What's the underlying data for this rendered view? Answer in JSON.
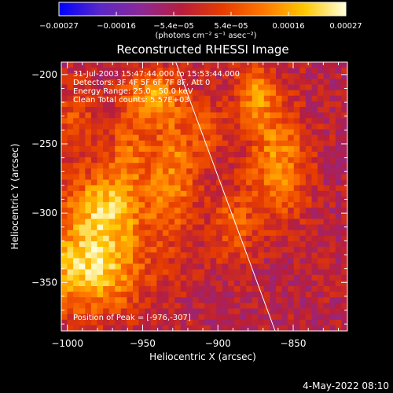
{
  "chart_data": {
    "type": "heatmap",
    "title": "Reconstructed RHESSI Image",
    "xlabel": "Heliocentric X (arcsec)",
    "ylabel": "Heliocentric Y (arcsec)",
    "xlim": [
      -1004,
      -814
    ],
    "ylim": [
      -385,
      -191
    ],
    "x_ticks": [
      {
        "value": -1000,
        "label": "−1000"
      },
      {
        "value": -950,
        "label": "−950"
      },
      {
        "value": -900,
        "label": "−900"
      },
      {
        "value": -850,
        "label": "−850"
      }
    ],
    "y_ticks": [
      {
        "value": -200,
        "label": "−200"
      },
      {
        "value": -250,
        "label": "−250"
      },
      {
        "value": -300,
        "label": "−300"
      },
      {
        "value": -350,
        "label": "−350"
      }
    ],
    "colorbar": {
      "range": [
        -0.00027,
        0.00027
      ],
      "ticks": [
        "−0.00027",
        "−0.00016",
        "−5.4e−05",
        "5.4e−05",
        "0.00016",
        "0.00027"
      ],
      "units_text": "(photons cm⁻² s⁻¹ asec⁻²)",
      "colors": [
        "#0000ff",
        "#5a28c8",
        "#8c2896",
        "#b81e3c",
        "#e63c00",
        "#ff7800",
        "#ffc800",
        "#ffffdc"
      ]
    },
    "annotations": [
      "31-Jul-2003 15:47:44.000 to 15:53:44.000",
      "Detectors: 3F 4F 5F 6F 7F 8F, Att 0",
      "Energy Range: 25.0 - 50.0 keV",
      "Clean     Total counts: 5.57E+03"
    ],
    "peak_label": "Position of Peak = [-976,-307]",
    "peak": {
      "x": -976,
      "y": -307
    },
    "limb_line": [
      {
        "x": -928,
        "y": -191
      },
      {
        "x": -862,
        "y": -385
      }
    ],
    "grid": false,
    "grid_shape": [
      48,
      48
    ],
    "emission_sources": [
      {
        "x": -985,
        "y": -340,
        "amp": 0.00026,
        "sx": 25,
        "sy": 22
      },
      {
        "x": -975,
        "y": -295,
        "amp": 0.00022,
        "sx": 18,
        "sy": 18
      },
      {
        "x": -945,
        "y": -215,
        "amp": 0.00017,
        "sx": 14,
        "sy": 12
      },
      {
        "x": -930,
        "y": -270,
        "amp": 0.00016,
        "sx": 12,
        "sy": 35
      },
      {
        "x": -960,
        "y": -255,
        "amp": 0.00012,
        "sx": 10,
        "sy": 20
      },
      {
        "x": -860,
        "y": -265,
        "amp": 0.00018,
        "sx": 14,
        "sy": 28
      },
      {
        "x": -875,
        "y": -215,
        "amp": 0.00016,
        "sx": 10,
        "sy": 16
      },
      {
        "x": -890,
        "y": -310,
        "amp": 0.00012,
        "sx": 10,
        "sy": 18
      },
      {
        "x": -905,
        "y": -240,
        "amp": 0.0001,
        "sx": 8,
        "sy": 14
      },
      {
        "x": -995,
        "y": -235,
        "amp": 0.00011,
        "sx": 8,
        "sy": 20
      }
    ],
    "background_level": -4e-05
  },
  "footer": {
    "date": "4-May-2022 08:10"
  }
}
